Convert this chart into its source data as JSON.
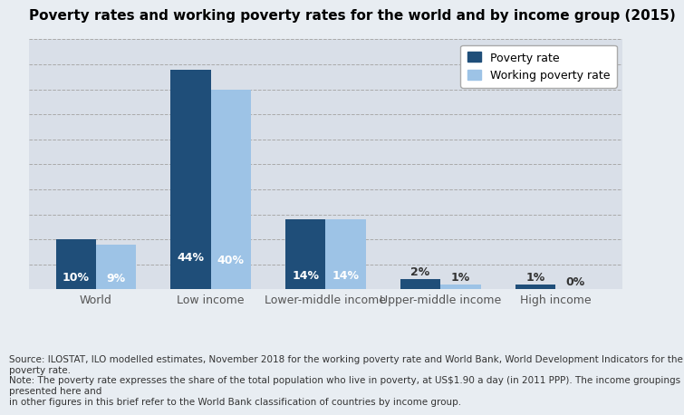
{
  "title": "Poverty rates and working poverty rates for the world and by income group (2015)",
  "categories": [
    "World",
    "Low income",
    "Lower-middle income",
    "Upper-middle income",
    "High income"
  ],
  "poverty_rates": [
    10,
    44,
    14,
    2,
    1
  ],
  "working_poverty_rates": [
    9,
    40,
    14,
    1,
    0
  ],
  "poverty_color": "#1F4E79",
  "working_poverty_color": "#9DC3E6",
  "background_color": "#E8EDF2",
  "plot_bg_color": "#D9DFE8",
  "ylim": [
    0,
    50
  ],
  "yticks": [
    0,
    5,
    10,
    15,
    20,
    25,
    30,
    35,
    40,
    45,
    50
  ],
  "bar_width": 0.35,
  "legend_poverty": "Poverty rate",
  "legend_working": "Working poverty rate",
  "source_text": "Source: ILOSTAT, ILO modelled estimates, November 2018 for the working poverty rate and World Bank, World Development Indicators for the poverty rate.\nNote: The poverty rate expresses the share of the total population who live in poverty, at US$1.90 a day (in 2011 PPP). The income groupings presented here and\nin other figures in this brief refer to the World Bank classification of countries by income group.",
  "title_fontsize": 11,
  "label_fontsize": 9,
  "tick_fontsize": 9,
  "source_fontsize": 7.5
}
